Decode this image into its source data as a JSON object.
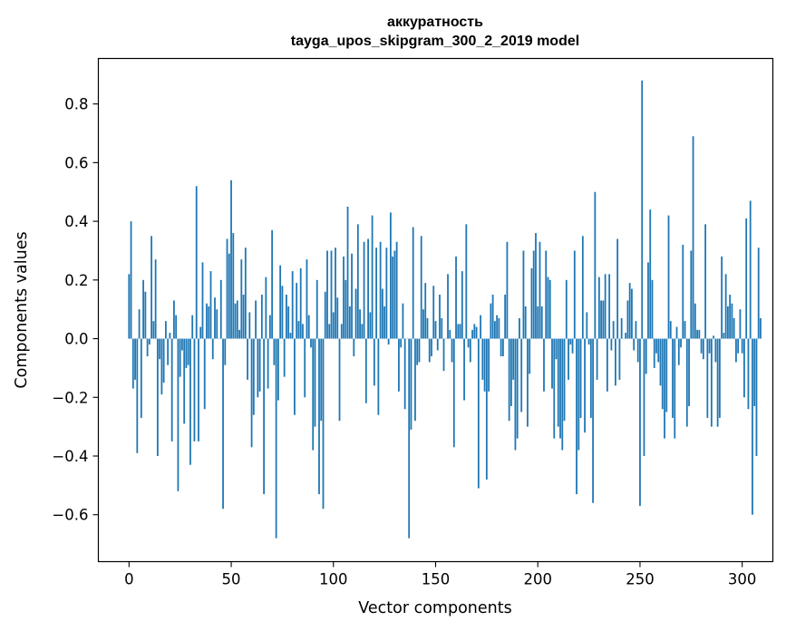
{
  "chart_data": {
    "type": "bar",
    "title": "аккуратность",
    "subtitle": "tayga_upos_skipgram_300_2_2019 model",
    "xlabel": "Vector components",
    "ylabel": "Components values",
    "xlim": [
      -15,
      315
    ],
    "ylim": [
      -0.76,
      0.955
    ],
    "xticks": [
      0,
      50,
      100,
      150,
      200,
      250,
      300
    ],
    "yticks": [
      -0.6,
      -0.4,
      -0.2,
      0.0,
      0.2,
      0.4,
      0.6,
      0.8
    ],
    "xtick_labels": [
      "0",
      "50",
      "100",
      "150",
      "200",
      "250",
      "300"
    ],
    "ytick_labels": [
      "−0.6",
      "−0.4",
      "−0.2",
      "0.0",
      "0.2",
      "0.4",
      "0.6",
      "0.8"
    ],
    "bar_color": "#1f77b4",
    "values": [
      0.22,
      0.4,
      -0.17,
      -0.14,
      -0.39,
      0.1,
      -0.27,
      0.2,
      0.16,
      -0.06,
      -0.02,
      0.35,
      0.06,
      0.27,
      -0.4,
      -0.07,
      -0.19,
      -0.15,
      0.06,
      -0.09,
      0.02,
      -0.35,
      0.13,
      0.08,
      -0.52,
      -0.13,
      -0.04,
      -0.29,
      -0.1,
      -0.09,
      -0.43,
      0.08,
      -0.35,
      0.52,
      -0.35,
      0.04,
      0.26,
      -0.24,
      0.12,
      0.11,
      0.23,
      -0.07,
      0.14,
      0.1,
      0.0,
      0.2,
      -0.58,
      -0.09,
      0.34,
      0.29,
      0.54,
      0.36,
      0.12,
      0.13,
      0.03,
      0.27,
      0.15,
      0.31,
      -0.14,
      0.09,
      -0.37,
      -0.26,
      0.13,
      -0.2,
      -0.18,
      0.15,
      -0.53,
      0.21,
      -0.17,
      0.08,
      0.37,
      -0.09,
      -0.68,
      -0.21,
      0.25,
      0.18,
      -0.13,
      0.15,
      0.11,
      0.02,
      0.23,
      -0.26,
      0.19,
      0.06,
      0.24,
      0.05,
      -0.2,
      0.27,
      0.08,
      -0.03,
      -0.38,
      -0.3,
      0.2,
      -0.53,
      -0.28,
      -0.58,
      0.16,
      0.3,
      0.05,
      0.3,
      0.09,
      0.31,
      0.14,
      -0.28,
      0.05,
      0.28,
      0.2,
      0.45,
      0.11,
      0.29,
      -0.06,
      0.17,
      0.39,
      0.1,
      0.05,
      0.33,
      -0.22,
      0.34,
      0.09,
      0.42,
      -0.16,
      0.31,
      -0.26,
      0.33,
      0.17,
      0.11,
      0.31,
      -0.02,
      0.43,
      0.28,
      0.3,
      0.33,
      -0.18,
      -0.03,
      0.12,
      -0.24,
      0.0,
      -0.68,
      -0.31,
      0.38,
      -0.28,
      -0.09,
      -0.08,
      0.35,
      0.1,
      0.19,
      0.07,
      -0.08,
      -0.06,
      0.18,
      0.06,
      -0.04,
      0.15,
      0.07,
      -0.11,
      0.0,
      0.22,
      0.03,
      -0.08,
      -0.37,
      0.28,
      0.05,
      0.05,
      0.23,
      -0.21,
      0.39,
      -0.03,
      -0.08,
      0.03,
      0.05,
      0.04,
      -0.51,
      0.08,
      -0.14,
      -0.18,
      -0.48,
      -0.18,
      0.12,
      0.15,
      0.06,
      0.08,
      0.07,
      -0.06,
      -0.06,
      0.15,
      0.33,
      -0.28,
      -0.23,
      -0.14,
      -0.38,
      -0.34,
      0.07,
      -0.25,
      0.3,
      0.11,
      -0.3,
      -0.12,
      0.24,
      0.3,
      0.36,
      0.11,
      0.33,
      0.11,
      -0.18,
      0.3,
      0.21,
      0.2,
      -0.17,
      -0.34,
      -0.07,
      -0.3,
      -0.34,
      -0.38,
      -0.28,
      0.2,
      -0.14,
      -0.02,
      -0.05,
      0.3,
      -0.53,
      -0.38,
      -0.27,
      0.35,
      -0.32,
      0.09,
      -0.02,
      -0.27,
      -0.56,
      0.5,
      -0.14,
      0.21,
      0.13,
      0.13,
      0.22,
      -0.18,
      0.22,
      -0.04,
      0.06,
      -0.16,
      0.34,
      -0.14,
      0.07,
      0.0,
      0.02,
      0.13,
      0.19,
      0.17,
      -0.04,
      0.06,
      -0.08,
      -0.57,
      0.88,
      -0.4,
      -0.12,
      0.26,
      0.44,
      0.2,
      -0.1,
      -0.05,
      -0.08,
      -0.16,
      -0.24,
      -0.34,
      -0.25,
      0.42,
      0.06,
      -0.27,
      -0.34,
      0.04,
      -0.09,
      -0.03,
      0.32,
      0.06,
      -0.3,
      -0.23,
      0.3,
      0.69,
      0.12,
      0.03,
      0.03,
      -0.05,
      -0.07,
      0.39,
      -0.27,
      -0.05,
      -0.3,
      0.01,
      -0.08,
      -0.3,
      -0.27,
      0.28,
      0.02,
      0.22,
      0.11,
      0.15,
      0.12,
      0.07,
      -0.08,
      -0.05,
      0.1,
      -0.05,
      -0.2,
      0.41,
      -0.24,
      0.47,
      -0.6,
      -0.23,
      -0.4,
      0.31,
      0.07
    ]
  }
}
